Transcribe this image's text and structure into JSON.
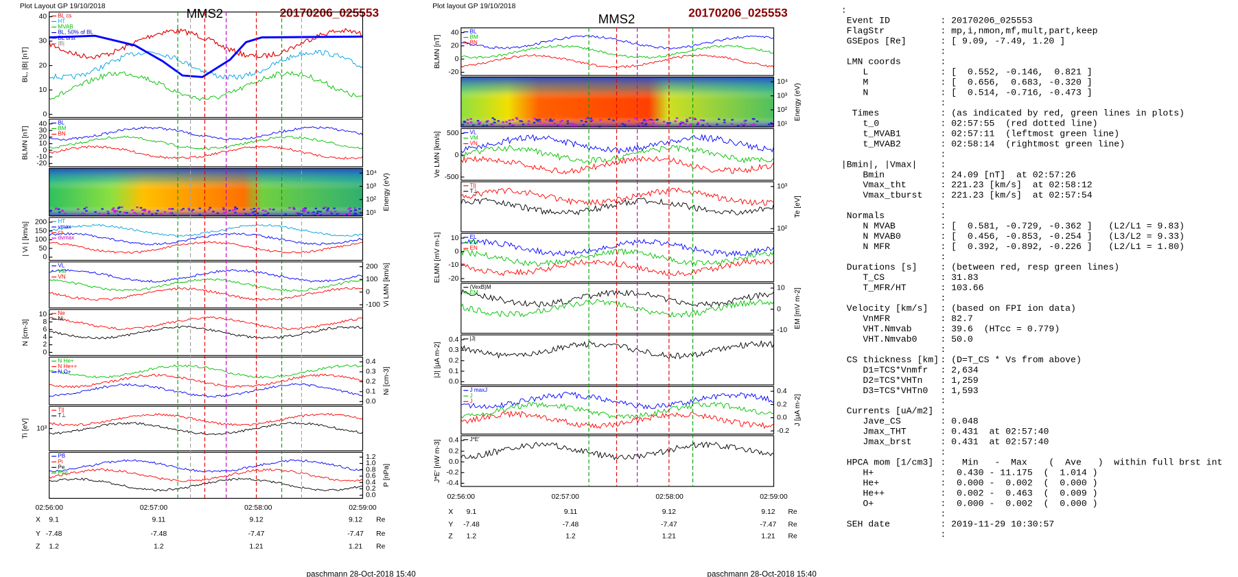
{
  "left": {
    "header": "Plot Layout GP 19/10/2018",
    "probe": "MMS2",
    "event": "20170206_025553",
    "panels": [
      {
        "ylabel": "BL, |B| [nT]",
        "side": "left",
        "yticks": [
          "0",
          "10",
          "20",
          "30",
          "40"
        ],
        "legend": [
          {
            "text": "BL cs",
            "color": "#e00000"
          },
          {
            "text": "HT",
            "color": "#00a0e0"
          },
          {
            "text": "MVAB",
            "color": "#00c000"
          },
          {
            "text": "BL, 50% of BL",
            "color": "#0000c0"
          },
          {
            "text": "BL brst",
            "color": "#0000ff"
          },
          {
            "text": "|B|",
            "color": "#808080"
          }
        ]
      },
      {
        "ylabel": "BLMN [nT]",
        "side": "left",
        "yticks": [
          "-20",
          "-10",
          "0",
          "10",
          "20",
          "30",
          "40"
        ],
        "legend": [
          {
            "text": "BL",
            "color": "#0000ff"
          },
          {
            "text": "BM",
            "color": "#00c000"
          },
          {
            "text": "BN",
            "color": "#ff0000"
          }
        ]
      },
      {
        "ylabel": "Energy (eV)",
        "side": "right",
        "kind": "spec",
        "yticks": [
          "10¹",
          "10²",
          "10³",
          "10⁴"
        ],
        "legend": []
      },
      {
        "ylabel": "| Vi | [km/s]",
        "side": "left",
        "yticks": [
          "0",
          "50",
          "100",
          "150",
          "200"
        ],
        "legend": [
          {
            "text": "HT",
            "color": "#00a0e0"
          },
          {
            "text": "vmax",
            "color": "#0000ff"
          },
          {
            "text": "cs",
            "color": "#ff0000"
          },
          {
            "text": "dvmax",
            "color": "#c000c0"
          }
        ]
      },
      {
        "ylabel": "Vi LMN [km/s]",
        "side": "right",
        "yticks": [
          "-100",
          "0",
          "100",
          "200"
        ],
        "legend": [
          {
            "text": "VL",
            "color": "#0000ff"
          },
          {
            "text": "VM",
            "color": "#00c000"
          },
          {
            "text": "VN",
            "color": "#ff0000"
          }
        ]
      },
      {
        "ylabel": "N [cm-3]",
        "side": "left",
        "yticks": [
          "0",
          "2",
          "4",
          "6",
          "8",
          "10"
        ],
        "legend": [
          {
            "text": "Ne",
            "color": "#ff0000"
          },
          {
            "text": "Ni",
            "color": "#000000"
          }
        ]
      },
      {
        "ylabel": "Ni [cm-3]",
        "side": "right",
        "yticks": [
          "0.0",
          "0.1",
          "0.2",
          "0.3",
          "0.4"
        ],
        "legend": [
          {
            "text": "N He+",
            "color": "#00c000"
          },
          {
            "text": "N He++",
            "color": "#ff0000"
          },
          {
            "text": "N O+",
            "color": "#0000ff"
          }
        ]
      },
      {
        "ylabel": "Ti [eV]",
        "side": "left",
        "yticks": [
          "10³"
        ],
        "legend": [
          {
            "text": "T||",
            "color": "#ff0000"
          },
          {
            "text": "T⊥",
            "color": "#000000"
          }
        ]
      },
      {
        "ylabel": "P [nPa]",
        "side": "right",
        "yticks": [
          "0.0",
          "0.2",
          "0.4",
          "0.6",
          "0.8",
          "1.0",
          "1.2"
        ],
        "legend": [
          {
            "text": "PB",
            "color": "#0000ff"
          },
          {
            "text": "Pi",
            "color": "#ff0000"
          },
          {
            "text": "Pe",
            "color": "#000000"
          },
          {
            "text": "Ptot",
            "color": "#00c000"
          }
        ]
      }
    ],
    "xticks": [
      "02:56:00",
      "02:57:00",
      "02:58:00",
      "02:59:00"
    ],
    "positions": [
      [
        "X",
        "9.1",
        "9.11",
        "9.12",
        "9.12",
        "Re"
      ],
      [
        "Y",
        "-7.48",
        "-7.48",
        "-7.47",
        "-7.47",
        "Re"
      ],
      [
        "Z",
        "1.2",
        "1.2",
        "1.21",
        "1.21",
        "Re"
      ]
    ],
    "footer": "paschmann 28-Oct-2018 15:40"
  },
  "right": {
    "header": "Plot layout GP 19/10/2018",
    "probe": "MMS2",
    "event": "20170206_025553",
    "panels": [
      {
        "ylabel": "BLMN [nT]",
        "side": "left",
        "yticks": [
          "-20",
          "0",
          "20",
          "40"
        ],
        "legend": [
          {
            "text": "BL",
            "color": "#0000ff"
          },
          {
            "text": "BM",
            "color": "#00c000"
          },
          {
            "text": "BN",
            "color": "#ff0000"
          }
        ]
      },
      {
        "ylabel": "Energy (eV)",
        "side": "right",
        "kind": "spec",
        "yticks": [
          "10¹",
          "10²",
          "10³",
          "10⁴"
        ],
        "legend": []
      },
      {
        "ylabel": "Ve LMN [km/s]",
        "side": "left",
        "yticks": [
          "-500",
          "0",
          "500"
        ],
        "legend": [
          {
            "text": "VL",
            "color": "#0000ff"
          },
          {
            "text": "VM",
            "color": "#00c000"
          },
          {
            "text": "VN",
            "color": "#ff0000"
          }
        ]
      },
      {
        "ylabel": "Te [eV]",
        "side": "right",
        "yticks": [
          "10²",
          "10³"
        ],
        "legend": [
          {
            "text": "T||",
            "color": "#ff0000"
          },
          {
            "text": "T⊥",
            "color": "#000000"
          }
        ]
      },
      {
        "ylabel": "ELMN [mV m-1]",
        "side": "left",
        "yticks": [
          "-20",
          "-10",
          "0",
          "10"
        ],
        "legend": [
          {
            "text": "EL",
            "color": "#0000ff"
          },
          {
            "text": "EM",
            "color": "#00c000"
          },
          {
            "text": "EN",
            "color": "#ff0000"
          }
        ]
      },
      {
        "ylabel": "EM [mV m-2]",
        "side": "right",
        "yticks": [
          "-10",
          "0",
          "10"
        ],
        "legend": [
          {
            "text": "(VexB)M",
            "color": "#000000"
          },
          {
            "text": "EM",
            "color": "#00c000"
          }
        ]
      },
      {
        "ylabel": "|J| [μA m-2]",
        "side": "left",
        "yticks": [
          "0.0",
          "0.1",
          "0.2",
          "0.3",
          "0.4"
        ],
        "legend": [
          {
            "text": "|J|",
            "color": "#000000"
          }
        ]
      },
      {
        "ylabel": "J [μA m-2]",
        "side": "right",
        "yticks": [
          "-0.2",
          "0.0",
          "0.2",
          "0.4"
        ],
        "legend": [
          {
            "text": "J maxJ",
            "color": "#0000ff"
          },
          {
            "text": "J",
            "color": "#00c000"
          },
          {
            "text": "J",
            "color": "#ff0000"
          }
        ]
      },
      {
        "ylabel": "J*E' [nW m-3]",
        "side": "left",
        "yticks": [
          "-0.4",
          "-0.2",
          "0.0",
          "0.2",
          "0.4"
        ],
        "legend": [
          {
            "text": "J*E'",
            "color": "#000000"
          }
        ]
      }
    ],
    "xticks": [
      "02:56:00",
      "02:57:00",
      "02:58:00",
      "02:59:00"
    ],
    "positions": [
      [
        "X",
        "9.1",
        "9.11",
        "9.12",
        "9.12",
        "Re"
      ],
      [
        "Y",
        "-7.48",
        "-7.48",
        "-7.47",
        "-7.47",
        "Re"
      ],
      [
        "Z",
        "1.2",
        "1.2",
        "1.21",
        "1.21",
        "Re"
      ]
    ],
    "footer": "paschmann 28-Oct-2018 15:40"
  },
  "info": {
    "lines": [
      {
        "key": "",
        "value": ":"
      },
      {
        "key": " Event ID",
        "value": ": 20170206_025553"
      },
      {
        "key": " FlagStr",
        "value": ": mp,i,nmon,mf,mult,part,keep"
      },
      {
        "key": " GSEpos [Re]",
        "value": ": [ 9.09, -7.49, 1.20 ]"
      },
      {
        "key": "",
        "value": ":"
      },
      {
        "key": " LMN coords",
        "value": ":"
      },
      {
        "key": "    L",
        "value": ": [  0.552, -0.146,  0.821 ]"
      },
      {
        "key": "    M",
        "value": ": [  0.656,  0.683, -0.320 ]"
      },
      {
        "key": "    N",
        "value": ": [  0.514, -0.716, -0.473 ]"
      },
      {
        "key": "",
        "value": ":"
      },
      {
        "key": "  Times",
        "value": ": (as indicated by red, green lines in plots)"
      },
      {
        "key": "    t_0",
        "value": ": 02:57:55  (red dotted line)"
      },
      {
        "key": "    t_MVAB1",
        "value": ": 02:57:11  (leftmost green line)"
      },
      {
        "key": "    t_MVAB2",
        "value": ": 02:58:14  (rightmost green line)"
      },
      {
        "key": "",
        "value": ":"
      },
      {
        "key": "|Bmin|, |Vmax|",
        "value": ":"
      },
      {
        "key": "    Bmin",
        "value": ": 24.09 [nT]  at 02:57:26"
      },
      {
        "key": "    Vmax_tht",
        "value": ": 221.23 [km/s]  at 02:58:12"
      },
      {
        "key": "    Vmax_tburst",
        "value": ": 221.23 [km/s]  at 02:57:54"
      },
      {
        "key": "",
        "value": ":"
      },
      {
        "key": " Normals",
        "value": ":"
      },
      {
        "key": "    N MVAB",
        "value": ": [  0.581, -0.729, -0.362 ]   (L2/L1 = 9.83)"
      },
      {
        "key": "    N MVAB0",
        "value": ": [  0.456, -0.853, -0.254 ]   (L3/L2 = 9.33)"
      },
      {
        "key": "    N MFR",
        "value": ": [  0.392, -0.892, -0.226 ]   (L2/L1 = 1.80)"
      },
      {
        "key": "",
        "value": ":"
      },
      {
        "key": " Durations [s]",
        "value": ": (between red, resp green lines)"
      },
      {
        "key": "    T_CS",
        "value": ": 31.83"
      },
      {
        "key": "    T_MFR/HT",
        "value": ": 103.66"
      },
      {
        "key": "",
        "value": ":"
      },
      {
        "key": " Velocity [km/s]",
        "value": ": (based on FPI ion data)"
      },
      {
        "key": "    VnMFR",
        "value": ": 82.7"
      },
      {
        "key": "    VHT.Nmvab",
        "value": ": 39.6  (HTcc = 0.779)"
      },
      {
        "key": "    VHT.Nmvab0",
        "value": ": 50.0"
      },
      {
        "key": "",
        "value": ":"
      },
      {
        "key": " CS thickness [km]",
        "value": ": (D=T_CS * Vs from above)"
      },
      {
        "key": "    D1=TCS*Vnmfr",
        "value": ": 2,634"
      },
      {
        "key": "    D2=TCS*VHTn",
        "value": ": 1,259"
      },
      {
        "key": "    D3=TCS*VHTn0",
        "value": ": 1,593"
      },
      {
        "key": "",
        "value": ":"
      },
      {
        "key": " Currents [uA/m2]",
        "value": ":"
      },
      {
        "key": "    Jave_CS",
        "value": ": 0.048"
      },
      {
        "key": "    Jmax_THT",
        "value": ": 0.431  at 02:57:40"
      },
      {
        "key": "    Jmax_brst",
        "value": ": 0.431  at 02:57:40"
      },
      {
        "key": "",
        "value": ":"
      },
      {
        "key": " HPCA mom [1/cm3]",
        "value": ":   Min   -  Max    (  Ave   )  within full brst int"
      },
      {
        "key": "    H+",
        "value": ":  0.430 - 11.175  (  1.014 )"
      },
      {
        "key": "    He+",
        "value": ":  0.000 -  0.002  (  0.000 )"
      },
      {
        "key": "    He++",
        "value": ":  0.002 -  0.463  (  0.009 )"
      },
      {
        "key": "    O+",
        "value": ":  0.000 -  0.002  (  0.000 )"
      },
      {
        "key": "",
        "value": ":"
      },
      {
        "key": " SEH date",
        "value": ": 2019-11-29 10:30:57"
      },
      {
        "key": "",
        "value": ":"
      }
    ]
  }
}
